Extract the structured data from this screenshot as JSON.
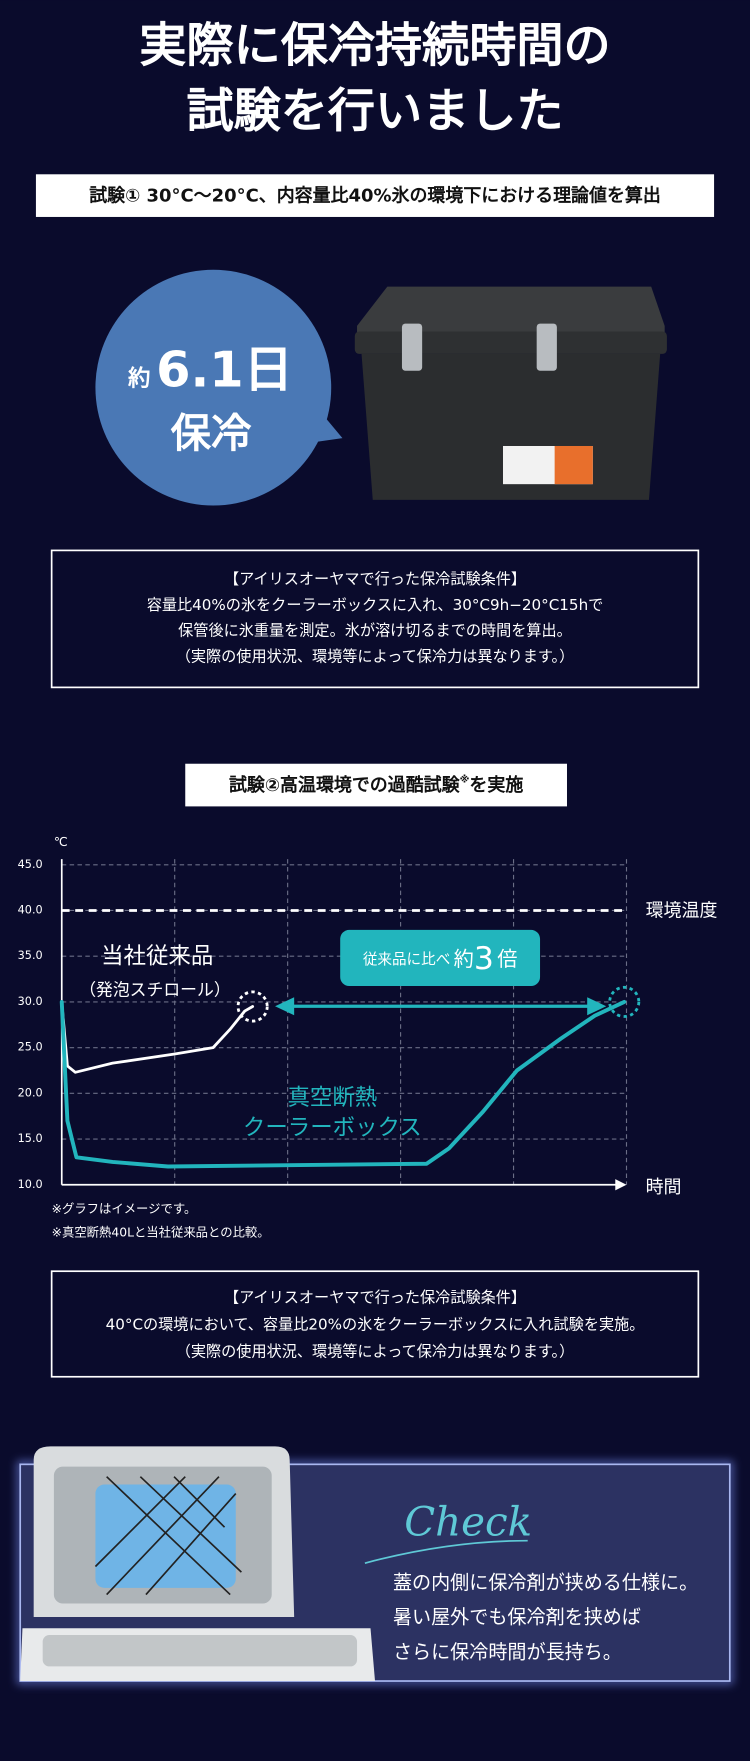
{
  "header": {
    "title_lines": [
      "実際に保冷持続時間の",
      "試験を行いました"
    ]
  },
  "test1": {
    "banner": "試験① 30°C〜20°C、内容量比40%氷の環境下における理論値を算出",
    "bubble": {
      "prefix": "約",
      "value": "6.1日",
      "caption": "保冷"
    },
    "conditions": [
      "【アイリスオーヤマで行った保冷試験条件】",
      "容量比40%の氷をクーラーボックスに入れ、30°C9h−20°C15hで",
      "保管後に氷重量を測定。氷が溶け切るまでの時間を算出。",
      "（実際の使用状況、環境等によって保冷力は異なります。）"
    ]
  },
  "test2": {
    "banner": {
      "main": "試験②高温環境での過酷試験",
      "mark": "※",
      "tail": "を実施"
    },
    "notes": [
      "※グラフはイメージです。",
      "※真空断熱40Lと当社従来品との比較。"
    ],
    "conditions": [
      "【アイリスオーヤマで行った保冷試験条件】",
      "40°Cの環境において、容量比20%の氷をクーラーボックスに入れ試験を実施。",
      "（実際の使用状況、環境等によって保冷力は異なります。）"
    ]
  },
  "chart_data": {
    "type": "line",
    "y_unit": "℃",
    "x_label": "時間",
    "xlim": [
      0,
      5
    ],
    "ylim": [
      10,
      45
    ],
    "yticks": [
      {
        "value": 10,
        "label": "10.0"
      },
      {
        "value": 15,
        "label": "15.0"
      },
      {
        "value": 20,
        "label": "20.0"
      },
      {
        "value": 25,
        "label": "25.0"
      },
      {
        "value": 30,
        "label": "30.0"
      },
      {
        "value": 35,
        "label": "35.0"
      },
      {
        "value": 40,
        "label": "40.0"
      },
      {
        "value": 45,
        "label": "45.0"
      }
    ],
    "grid": true,
    "reference": {
      "value": 40,
      "label": "環境温度"
    },
    "series": [
      {
        "name": "当社従来品",
        "note": "（発泡スチロール）",
        "color": "#ffffff",
        "x": [
          0,
          0.05,
          0.12,
          0.45,
          1,
          1.34,
          1.49,
          1.62,
          1.69
        ],
        "values": [
          30,
          23,
          22.3,
          23.3,
          24.3,
          25,
          27,
          29,
          29.5
        ]
      },
      {
        "label_lines": [
          "真空断熱",
          "クーラーボックス"
        ],
        "color": "#22b5bd",
        "x": [
          0,
          0.05,
          0.13,
          0.45,
          0.94,
          3.23,
          3.43,
          3.73,
          4.03,
          4.42,
          4.72,
          4.98
        ],
        "values": [
          30,
          17,
          13,
          12.5,
          12,
          12.3,
          14,
          18,
          22.5,
          26,
          28.5,
          30
        ]
      }
    ],
    "badge": {
      "prefix": "従来品に比べ",
      "about": "約",
      "number": "3",
      "unit": "倍"
    }
  },
  "check": {
    "heading": "Check",
    "lines": [
      "蓋の内側に保冷剤が挟める仕様に。",
      "暑い屋外でも保冷剤を挟めば",
      "さらに保冷時間が長持ち。"
    ]
  }
}
